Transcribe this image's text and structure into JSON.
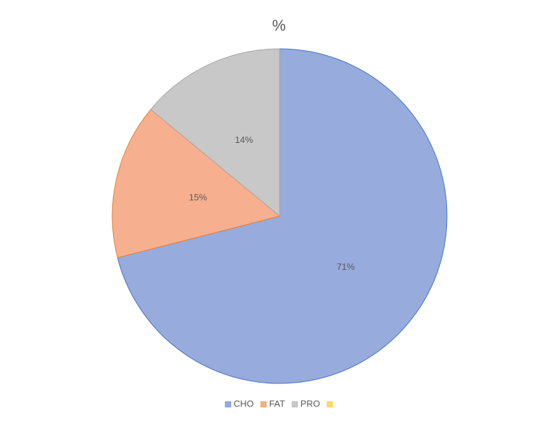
{
  "chart_data": {
    "type": "pie",
    "title": "%",
    "categories": [
      "CHO",
      "FAT",
      "PRO",
      null
    ],
    "values": [
      71,
      15,
      14,
      0
    ],
    "value_labels": [
      "71%",
      "15%",
      "14%",
      null
    ],
    "colors": [
      "#97abdd",
      "#f6b08f",
      "#c8c8c8",
      "#ffd966"
    ],
    "edge_colors": [
      "#4472c4",
      "#ed7d31",
      "#a5a5a5",
      "#ffc000"
    ],
    "legend": "bottom"
  }
}
